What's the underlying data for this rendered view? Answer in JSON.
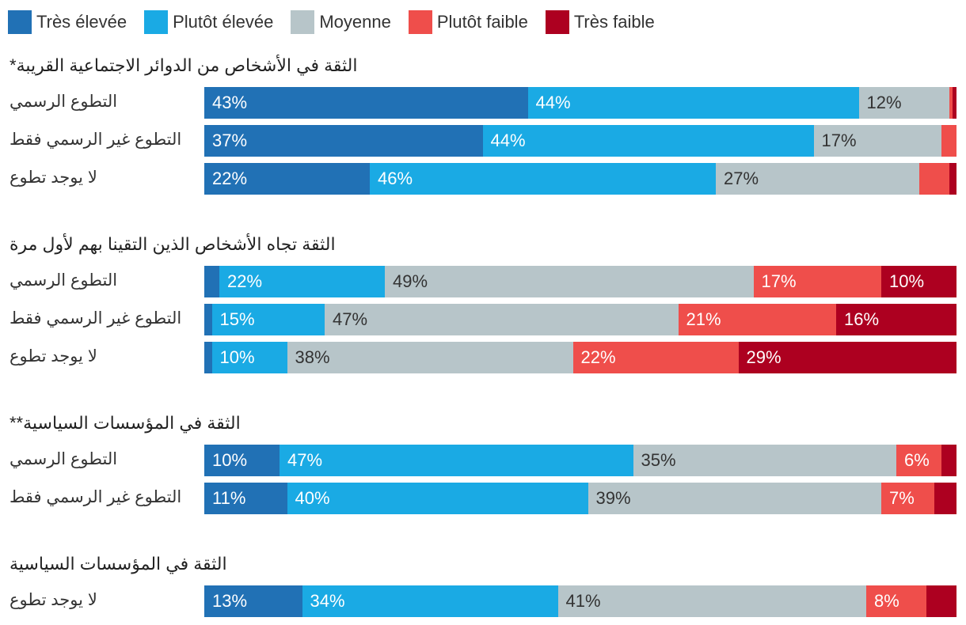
{
  "legend": [
    {
      "label": "Très élevée",
      "color": "#2171b5"
    },
    {
      "label": "Plutôt élevée",
      "color": "#1aaae4"
    },
    {
      "label": "Moyenne",
      "color": "#b7c5c9"
    },
    {
      "label": "Plutôt faible",
      "color": "#ef4e4b"
    },
    {
      "label": "Très faible",
      "color": "#ad0020"
    }
  ],
  "label_colors": [
    "#ffffff",
    "#ffffff",
    "#333333",
    "#ffffff",
    "#ffffff"
  ],
  "chart_data": {
    "type": "bar",
    "orientation": "horizontal",
    "stacked": true,
    "unit": "%",
    "series_names": [
      "Très élevée",
      "Plutôt élevée",
      "Moyenne",
      "Plutôt faible",
      "Très faible"
    ],
    "groups": [
      {
        "title": "*الثقة في الأشخاص من الدوائر الاجتماعية القريبة",
        "rows": [
          {
            "label": "التطوع الرسمي",
            "values": [
              43,
              44,
              12,
              0.5,
              0.5
            ],
            "labels": [
              "43%",
              "44%",
              "12%",
              "",
              ""
            ]
          },
          {
            "label": "التطوع غير الرسمي فقط",
            "values": [
              37,
              44,
              17,
              2,
              0
            ],
            "labels": [
              "37%",
              "44%",
              "17%",
              "",
              ""
            ]
          },
          {
            "label": "لا يوجد تطوع",
            "values": [
              22,
              46,
              27,
              4,
              1
            ],
            "labels": [
              "22%",
              "46%",
              "27%",
              "",
              ""
            ]
          }
        ]
      },
      {
        "title": "الثقة تجاه الأشخاص الذين التقينا بهم لأول مرة",
        "rows": [
          {
            "label": "التطوع الرسمي",
            "values": [
              2,
              22,
              49,
              17,
              10
            ],
            "labels": [
              "",
              "22%",
              "49%",
              "17%",
              "10%"
            ]
          },
          {
            "label": "التطوع غير الرسمي فقط",
            "values": [
              1,
              15,
              47,
              21,
              16
            ],
            "labels": [
              "",
              "15%",
              "47%",
              "21%",
              "16%"
            ]
          },
          {
            "label": "لا يوجد تطوع",
            "values": [
              1,
              10,
              38,
              22,
              29
            ],
            "labels": [
              "",
              "10%",
              "38%",
              "22%",
              "29%"
            ]
          }
        ]
      },
      {
        "title": "**الثقة في المؤسسات السياسية",
        "rows": [
          {
            "label": "التطوع الرسمي",
            "values": [
              10,
              47,
              35,
              6,
              2
            ],
            "labels": [
              "10%",
              "47%",
              "35%",
              "6%",
              ""
            ]
          },
          {
            "label": "التطوع غير الرسمي فقط",
            "values": [
              11,
              40,
              39,
              7,
              3
            ],
            "labels": [
              "11%",
              "40%",
              "39%",
              "7%",
              ""
            ]
          }
        ]
      },
      {
        "title": "الثقة في المؤسسات السياسية",
        "rows": [
          {
            "label": "لا يوجد تطوع",
            "values": [
              13,
              34,
              41,
              8,
              4
            ],
            "labels": [
              "13%",
              "34%",
              "41%",
              "8%",
              ""
            ]
          }
        ]
      }
    ]
  }
}
